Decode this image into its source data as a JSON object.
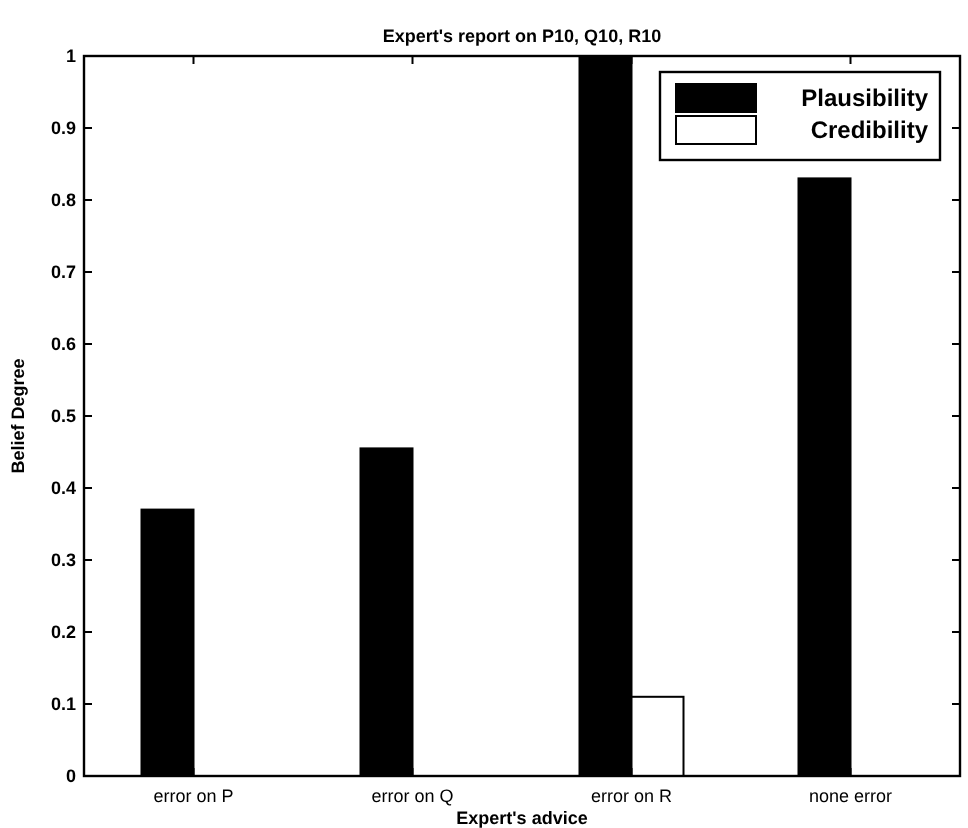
{
  "chart_data": {
    "type": "bar",
    "title": "Expert's report on  P10, Q10, R10",
    "xlabel": "Expert's advice",
    "ylabel": "Belief Degree",
    "categories": [
      "error on P",
      "error on Q",
      "error on R",
      "none error"
    ],
    "series": [
      {
        "name": "Plausibility",
        "color": "#000000",
        "values": [
          0.37,
          0.455,
          1.0,
          0.83
        ]
      },
      {
        "name": "Credibility",
        "color": "#ffffff",
        "values": [
          0,
          0,
          0.11,
          0
        ]
      }
    ],
    "ylim": [
      0,
      1
    ],
    "yticks": [
      0,
      0.1,
      0.2,
      0.3,
      0.4,
      0.5,
      0.6,
      0.7,
      0.8,
      0.9,
      1
    ],
    "grid": false,
    "legend": "top right"
  }
}
